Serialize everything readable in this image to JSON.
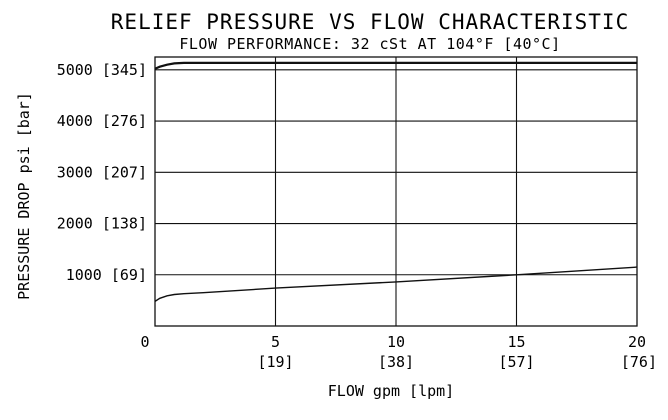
{
  "chart_data": {
    "type": "line",
    "title": "RELIEF PRESSURE VS FLOW CHARACTERISTIC",
    "subtitle": "FLOW PERFORMANCE: 32 cSt AT 104°F [40°C]",
    "xlabel": "FLOW gpm [lpm]",
    "ylabel": "PRESSURE DROP psi [bar]",
    "xlim": [
      0,
      20
    ],
    "ylim": [
      0,
      5250
    ],
    "grid": true,
    "x_ticks": [
      {
        "value": 0,
        "label": "0",
        "sublabel": ""
      },
      {
        "value": 5,
        "label": "5",
        "sublabel": "[19]"
      },
      {
        "value": 10,
        "label": "10",
        "sublabel": "[38]"
      },
      {
        "value": 15,
        "label": "15",
        "sublabel": "[57]"
      },
      {
        "value": 20,
        "label": "20",
        "sublabel": "[76]"
      }
    ],
    "y_ticks": [
      {
        "value": 1000,
        "label": "1000 [69]"
      },
      {
        "value": 2000,
        "label": "2000 [138]"
      },
      {
        "value": 3000,
        "label": "3000 [207]"
      },
      {
        "value": 4000,
        "label": "4000 [276]"
      },
      {
        "value": 5000,
        "label": "5000 [345]"
      }
    ],
    "series": [
      {
        "x": [
          0,
          0.2,
          0.5,
          0.8,
          1.2,
          2,
          5,
          10,
          15,
          20
        ],
        "y": [
          5020,
          5060,
          5100,
          5125,
          5135,
          5135,
          5135,
          5135,
          5135,
          5135
        ]
      },
      {
        "x": [
          0,
          0.2,
          0.5,
          0.8,
          1.2,
          2,
          5,
          10,
          15,
          20
        ],
        "y": [
          480,
          540,
          590,
          615,
          630,
          650,
          740,
          860,
          1000,
          1150
        ]
      }
    ]
  }
}
